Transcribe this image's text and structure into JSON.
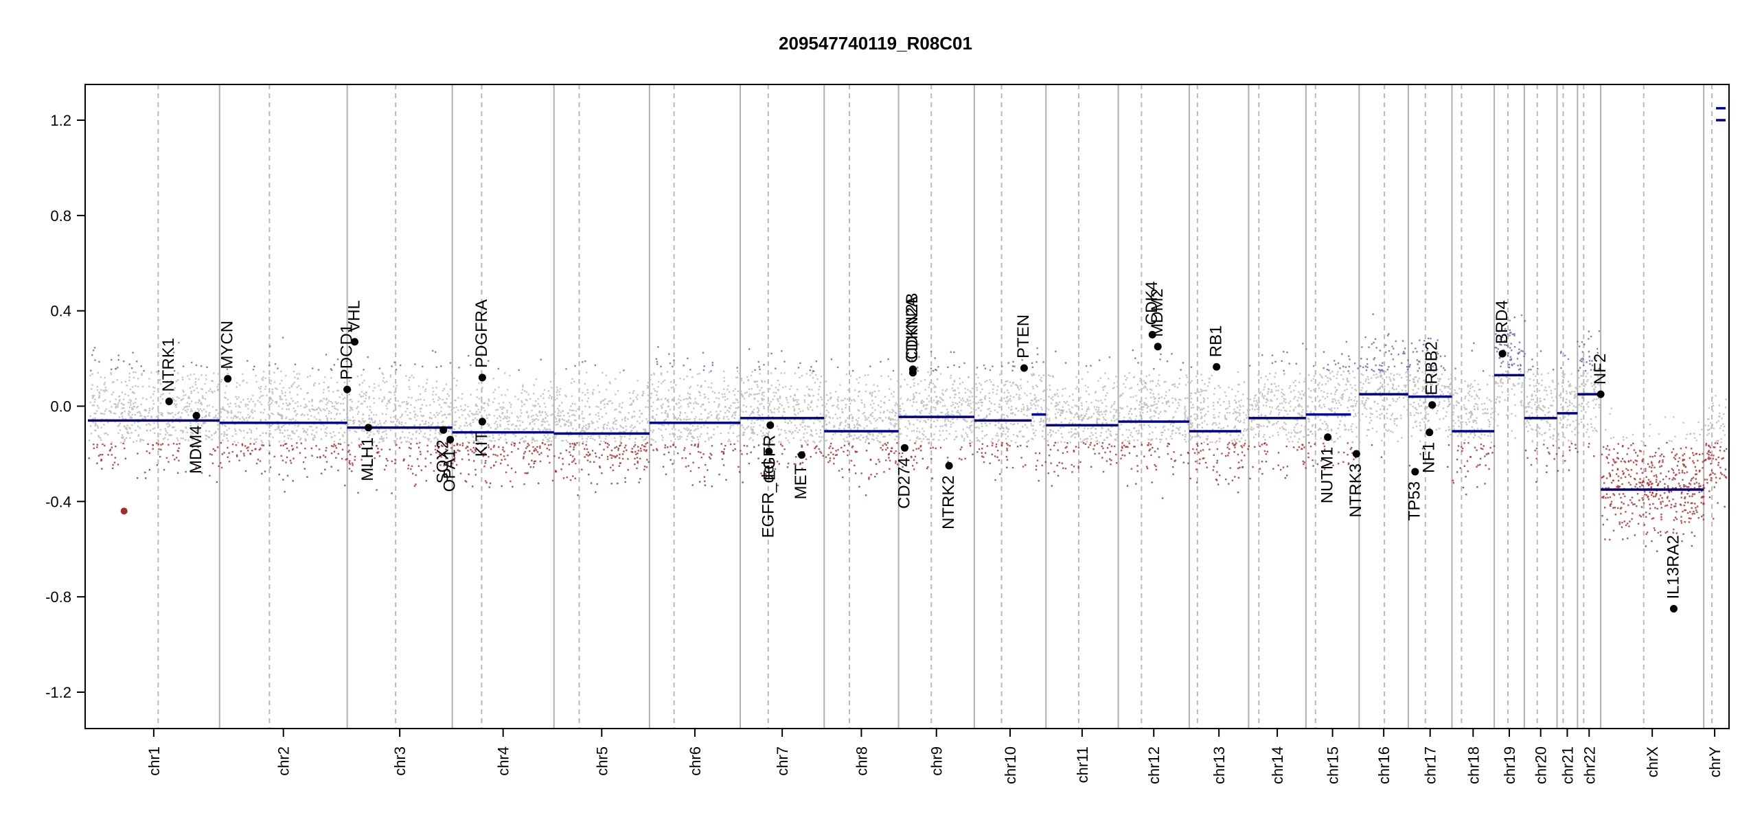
{
  "chart_data": {
    "type": "scatter",
    "title": "209547740119_R08C01",
    "xlabel": "",
    "ylabel": "",
    "ylim": [
      -1.4,
      1.35
    ],
    "y_ticks": [
      -1.2,
      -0.8,
      -0.4,
      0.0,
      0.4,
      0.8,
      1.2
    ],
    "y_tick_labels": [
      "-1.2",
      "-0.8",
      "-0.4",
      "0.0",
      "0.4",
      "0.8",
      "1.2"
    ],
    "xlim": [
      0,
      2400
    ],
    "chromosomes": [
      {
        "name": "chr1",
        "start": 0,
        "end": 193,
        "centromere": 103
      },
      {
        "name": "chr2",
        "start": 193,
        "end": 380,
        "centromere": 266
      },
      {
        "name": "chr3",
        "start": 380,
        "end": 534,
        "centromere": 451
      },
      {
        "name": "chr4",
        "start": 534,
        "end": 683,
        "centromere": 577
      },
      {
        "name": "chr5",
        "start": 683,
        "end": 823,
        "centromere": 720
      },
      {
        "name": "chr6",
        "start": 823,
        "end": 956,
        "centromere": 859
      },
      {
        "name": "chr7",
        "start": 956,
        "end": 1079,
        "centromere": 997
      },
      {
        "name": "chr8",
        "start": 1079,
        "end": 1188,
        "centromere": 1116
      },
      {
        "name": "chr9",
        "start": 1188,
        "end": 1299,
        "centromere": 1236
      },
      {
        "name": "chr10",
        "start": 1299,
        "end": 1404,
        "centromere": 1339
      },
      {
        "name": "chr11",
        "start": 1404,
        "end": 1510,
        "centromere": 1452
      },
      {
        "name": "chr12",
        "start": 1510,
        "end": 1614,
        "centromere": 1544
      },
      {
        "name": "chr13",
        "start": 1614,
        "end": 1701,
        "centromere": 1626
      },
      {
        "name": "chr14",
        "start": 1701,
        "end": 1785,
        "centromere": 1716
      },
      {
        "name": "chr15",
        "start": 1785,
        "end": 1863,
        "centromere": 1799
      },
      {
        "name": "chr16",
        "start": 1863,
        "end": 1935,
        "centromere": 1900
      },
      {
        "name": "chr17",
        "start": 1935,
        "end": 1999,
        "centromere": 1960
      },
      {
        "name": "chr18",
        "start": 1999,
        "end": 2061,
        "centromere": 2013
      },
      {
        "name": "chr19",
        "start": 2061,
        "end": 2105,
        "centromere": 2081
      },
      {
        "name": "chr20",
        "start": 2105,
        "end": 2153,
        "centromere": 2124
      },
      {
        "name": "chr21",
        "start": 2153,
        "end": 2183,
        "centromere": 2162
      },
      {
        "name": "chr22",
        "start": 2183,
        "end": 2217,
        "centromere": 2192
      },
      {
        "name": "chrX",
        "start": 2217,
        "end": 2368,
        "centromere": 2280
      },
      {
        "name": "chrY",
        "start": 2368,
        "end": 2400,
        "centromere": 2380
      }
    ],
    "segments": [
      {
        "x0": 0,
        "x1": 193,
        "y": -0.06
      },
      {
        "x0": 193,
        "x1": 380,
        "y": -0.07
      },
      {
        "x0": 380,
        "x1": 534,
        "y": -0.09
      },
      {
        "x0": 534,
        "x1": 683,
        "y": -0.11
      },
      {
        "x0": 683,
        "x1": 823,
        "y": -0.115
      },
      {
        "x0": 823,
        "x1": 956,
        "y": -0.07
      },
      {
        "x0": 956,
        "x1": 1079,
        "y": -0.05
      },
      {
        "x0": 1079,
        "x1": 1188,
        "y": -0.105
      },
      {
        "x0": 1188,
        "x1": 1299,
        "y": -0.045
      },
      {
        "x0": 1299,
        "x1": 1383,
        "y": -0.06
      },
      {
        "x0": 1383,
        "x1": 1404,
        "y": -0.035
      },
      {
        "x0": 1404,
        "x1": 1510,
        "y": -0.08
      },
      {
        "x0": 1510,
        "x1": 1614,
        "y": -0.065
      },
      {
        "x0": 1614,
        "x1": 1690,
        "y": -0.105
      },
      {
        "x0": 1701,
        "x1": 1785,
        "y": -0.05
      },
      {
        "x0": 1785,
        "x1": 1851,
        "y": -0.035
      },
      {
        "x0": 1863,
        "x1": 1935,
        "y": 0.05
      },
      {
        "x0": 1935,
        "x1": 1999,
        "y": 0.04
      },
      {
        "x0": 1999,
        "x1": 2061,
        "y": -0.105
      },
      {
        "x0": 2061,
        "x1": 2105,
        "y": 0.13
      },
      {
        "x0": 2105,
        "x1": 2153,
        "y": -0.05
      },
      {
        "x0": 2153,
        "x1": 2183,
        "y": -0.03
      },
      {
        "x0": 2183,
        "x1": 2217,
        "y": 0.05
      },
      {
        "x0": 2217,
        "x1": 2368,
        "y": -0.35
      },
      {
        "x0": 2386,
        "x1": 2400,
        "y": 1.2
      },
      {
        "x0": 2386,
        "x1": 2400,
        "y": 1.25
      }
    ],
    "genes": [
      {
        "name": "NTRK1",
        "x": 119,
        "y": 0.02,
        "label_side": "above"
      },
      {
        "name": "MDM4",
        "x": 159,
        "y": -0.04,
        "label_side": "below"
      },
      {
        "name": "MYCN",
        "x": 205,
        "y": 0.115,
        "label_side": "above"
      },
      {
        "name": "PDCD1",
        "x": 380,
        "y": 0.07,
        "label_side": "above"
      },
      {
        "name": "VHL",
        "x": 391,
        "y": 0.27,
        "label_side": "above"
      },
      {
        "name": "MLH1",
        "x": 411,
        "y": -0.09,
        "label_side": "below"
      },
      {
        "name": "SOX2",
        "x": 521,
        "y": -0.1,
        "label_side": "below"
      },
      {
        "name": "OPA1",
        "x": 531,
        "y": -0.14,
        "label_side": "below"
      },
      {
        "name": "PDGFRA",
        "x": 578,
        "y": 0.12,
        "label_side": "above"
      },
      {
        "name": "KIT",
        "x": 578,
        "y": -0.065,
        "label_side": "below"
      },
      {
        "name": "EGFR_del",
        "x": 998,
        "y": -0.19,
        "label_side": "below"
      },
      {
        "name": "EGFR",
        "x": 1000,
        "y": -0.08,
        "label_side": "below"
      },
      {
        "name": "MET",
        "x": 1046,
        "y": -0.205,
        "label_side": "below"
      },
      {
        "name": "CD274",
        "x": 1197,
        "y": -0.175,
        "label_side": "below"
      },
      {
        "name": "CDKN2A",
        "x": 1209,
        "y": 0.14,
        "label_side": "above"
      },
      {
        "name": "CDKN2B",
        "x": 1209,
        "y": 0.155,
        "label_side": "above"
      },
      {
        "name": "NTRK2",
        "x": 1262,
        "y": -0.25,
        "label_side": "below"
      },
      {
        "name": "PTEN",
        "x": 1372,
        "y": 0.16,
        "label_side": "above"
      },
      {
        "name": "CDK4",
        "x": 1560,
        "y": 0.3,
        "label_side": "above"
      },
      {
        "name": "MDM2",
        "x": 1568,
        "y": 0.25,
        "label_side": "above"
      },
      {
        "name": "RB1",
        "x": 1654,
        "y": 0.165,
        "label_side": "above"
      },
      {
        "name": "NUTM1",
        "x": 1817,
        "y": -0.13,
        "label_side": "below"
      },
      {
        "name": "NTRK3",
        "x": 1859,
        "y": -0.2,
        "label_side": "below"
      },
      {
        "name": "TP53",
        "x": 1945,
        "y": -0.275,
        "label_side": "below"
      },
      {
        "name": "NF1",
        "x": 1966,
        "y": -0.11,
        "label_side": "below"
      },
      {
        "name": "ERBB2",
        "x": 1970,
        "y": 0.005,
        "label_side": "above"
      },
      {
        "name": "BRD4",
        "x": 2073,
        "y": 0.22,
        "label_side": "above"
      },
      {
        "name": "NF2",
        "x": 2217,
        "y": 0.05,
        "label_side": "above"
      },
      {
        "name": "IL13RA2",
        "x": 2324,
        "y": -0.85,
        "label_side": "above"
      }
    ],
    "highlight_points": [
      {
        "x": 53,
        "y": -0.44,
        "color": "#a52a2a"
      }
    ],
    "colors": {
      "gain": "#6a6ab8",
      "neutral": "#bdbdbd",
      "loss": "#b03030",
      "segment": "#00008b",
      "gene_marker": "#000000",
      "chrom_boundary": "#b0b0b0",
      "centromere": "#b8b8b8"
    },
    "grid": false,
    "legend": "none"
  }
}
